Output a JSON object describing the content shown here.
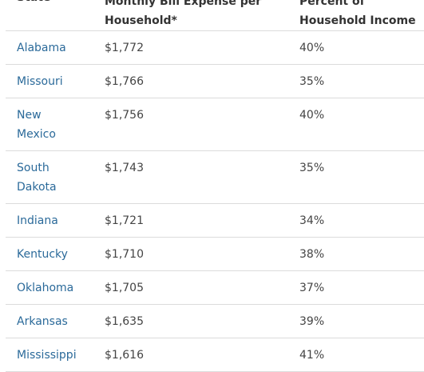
{
  "table": {
    "headers": {
      "state": "State",
      "expense": "Monthly Bill Expense per Household*",
      "percent": "Percent of Household Income"
    },
    "rows": [
      {
        "state": "Alabama",
        "expense": "$1,772",
        "percent": "40%"
      },
      {
        "state": "Missouri",
        "expense": "$1,766",
        "percent": "35%"
      },
      {
        "state": "New Mexico",
        "expense": "$1,756",
        "percent": "40%"
      },
      {
        "state": "South Dakota",
        "expense": "$1,743",
        "percent": "35%"
      },
      {
        "state": "Indiana",
        "expense": "$1,721",
        "percent": "34%"
      },
      {
        "state": "Kentucky",
        "expense": "$1,710",
        "percent": "38%"
      },
      {
        "state": "Oklahoma",
        "expense": "$1,705",
        "percent": "37%"
      },
      {
        "state": "Arkansas",
        "expense": "$1,635",
        "percent": "39%"
      },
      {
        "state": "Mississippi",
        "expense": "$1,616",
        "percent": "41%"
      }
    ]
  },
  "colors": {
    "state_link": "#2b6a9a",
    "text": "#333333",
    "divider": "#dcdcdc"
  }
}
